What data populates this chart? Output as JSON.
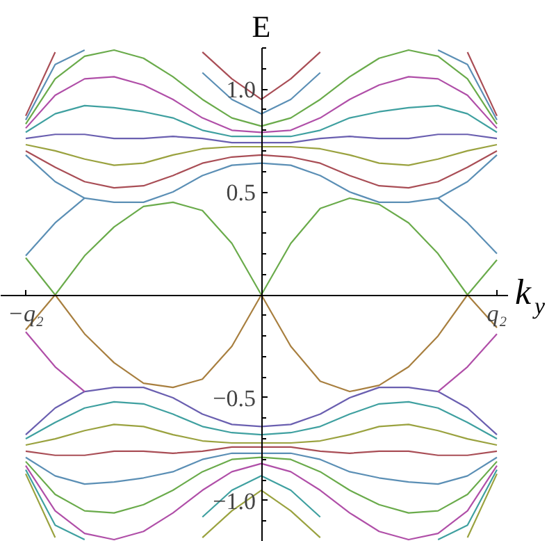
{
  "chart_data": {
    "type": "line",
    "xlabel": "k$_{y}$",
    "ylabel": "E",
    "categories": [
      "−q₂",
      null,
      null,
      null,
      null,
      null,
      null,
      null,
      null,
      null,
      null,
      null,
      null,
      null,
      null,
      null,
      "q₂"
    ],
    "ylim": [
      -1.2,
      1.2
    ],
    "yticks": [
      {
        "value": -1,
        "label": "−1.0"
      },
      {
        "value": -0.5,
        "label": "−0.5"
      },
      0.5,
      {
        "value": 1,
        "label": "1.0"
      }
    ],
    "grid": false,
    "marker": "none",
    "line_style": "solid",
    "series": [
      {
        "color": "#5b8fb5",
        "values": [
          0.68,
          0.55,
          0.47,
          0.45,
          0.45,
          0.5,
          0.58,
          0.63,
          0.64,
          0.63,
          0.58,
          0.5,
          0.45,
          0.45,
          0.47,
          0.55,
          0.68
        ]
      },
      {
        "color": "#a94e56",
        "values": [
          0.7,
          0.62,
          0.55,
          0.52,
          0.53,
          0.58,
          0.64,
          0.67,
          0.68,
          0.67,
          0.64,
          0.58,
          0.53,
          0.52,
          0.55,
          0.62,
          0.7
        ]
      },
      {
        "color": "#9aa23f",
        "values": [
          0.73,
          0.7,
          0.66,
          0.63,
          0.64,
          0.68,
          0.71,
          0.72,
          0.72,
          0.72,
          0.71,
          0.68,
          0.64,
          0.63,
          0.66,
          0.7,
          0.73
        ]
      },
      {
        "color": "#6a5fb0",
        "values": [
          0.76,
          0.78,
          0.78,
          0.76,
          0.76,
          0.77,
          0.76,
          0.74,
          0.74,
          0.74,
          0.76,
          0.77,
          0.76,
          0.76,
          0.78,
          0.78,
          0.76
        ]
      },
      {
        "color": "#3fa0a0",
        "values": [
          0.79,
          0.88,
          0.92,
          0.91,
          0.89,
          0.86,
          0.8,
          0.77,
          0.77,
          0.77,
          0.8,
          0.86,
          0.89,
          0.91,
          0.92,
          0.88,
          0.79
        ]
      },
      {
        "color": "#b04fa8",
        "values": [
          0.81,
          0.97,
          1.05,
          1.06,
          1.02,
          0.95,
          0.86,
          0.8,
          0.79,
          0.8,
          0.86,
          0.95,
          1.02,
          1.06,
          1.05,
          0.97,
          0.81
        ]
      },
      {
        "color": "#6aab4b",
        "values": [
          0.83,
          1.05,
          1.16,
          1.19,
          1.15,
          1.06,
          0.95,
          0.86,
          0.82,
          0.86,
          0.95,
          1.06,
          1.15,
          1.19,
          1.16,
          1.05,
          0.83
        ]
      },
      {
        "color": "#5b8fb5",
        "values": [
          0.85,
          1.12,
          1.19,
          null,
          null,
          null,
          1.08,
          0.95,
          0.88,
          0.95,
          1.08,
          null,
          null,
          null,
          1.19,
          1.12,
          0.85
        ]
      },
      {
        "color": "#a94e56",
        "values": [
          0.87,
          1.18,
          null,
          null,
          null,
          null,
          1.18,
          1.05,
          0.95,
          1.05,
          1.18,
          null,
          null,
          null,
          null,
          1.18,
          0.87
        ]
      },
      {
        "color": "#6a5fb0",
        "values": [
          -0.68,
          -0.55,
          -0.47,
          -0.45,
          -0.45,
          -0.5,
          -0.58,
          -0.63,
          -0.64,
          -0.63,
          -0.58,
          -0.5,
          -0.45,
          -0.45,
          -0.47,
          -0.55,
          -0.68
        ]
      },
      {
        "color": "#3fa0a0",
        "values": [
          -0.7,
          -0.62,
          -0.55,
          -0.52,
          -0.53,
          -0.58,
          -0.64,
          -0.67,
          -0.68,
          -0.67,
          -0.64,
          -0.58,
          -0.53,
          -0.52,
          -0.55,
          -0.62,
          -0.7
        ]
      },
      {
        "color": "#9aa23f",
        "values": [
          -0.73,
          -0.7,
          -0.66,
          -0.63,
          -0.64,
          -0.68,
          -0.71,
          -0.72,
          -0.72,
          -0.72,
          -0.71,
          -0.68,
          -0.64,
          -0.63,
          -0.66,
          -0.7,
          -0.73
        ]
      },
      {
        "color": "#a94e56",
        "values": [
          -0.76,
          -0.78,
          -0.78,
          -0.76,
          -0.76,
          -0.77,
          -0.76,
          -0.74,
          -0.74,
          -0.74,
          -0.76,
          -0.77,
          -0.76,
          -0.76,
          -0.78,
          -0.78,
          -0.76
        ]
      },
      {
        "color": "#5b8fb5",
        "values": [
          -0.79,
          -0.88,
          -0.92,
          -0.91,
          -0.89,
          -0.86,
          -0.8,
          -0.77,
          -0.77,
          -0.77,
          -0.8,
          -0.86,
          -0.89,
          -0.91,
          -0.92,
          -0.88,
          -0.79
        ]
      },
      {
        "color": "#6aab4b",
        "values": [
          -0.81,
          -0.97,
          -1.05,
          -1.06,
          -1.02,
          -0.95,
          -0.86,
          -0.8,
          -0.79,
          -0.8,
          -0.86,
          -0.95,
          -1.02,
          -1.06,
          -1.05,
          -0.97,
          -0.81
        ]
      },
      {
        "color": "#b04fa8",
        "values": [
          -0.83,
          -1.05,
          -1.16,
          -1.19,
          -1.15,
          -1.06,
          -0.95,
          -0.86,
          -0.82,
          -0.86,
          -0.95,
          -1.06,
          -1.15,
          -1.19,
          -1.16,
          -1.05,
          -0.83
        ]
      },
      {
        "color": "#3fa0a0",
        "values": [
          -0.85,
          -1.12,
          -1.19,
          null,
          null,
          null,
          -1.08,
          -0.95,
          -0.88,
          -0.95,
          -1.08,
          null,
          null,
          null,
          -1.19,
          -1.12,
          -0.85
        ]
      },
      {
        "color": "#9aa23f",
        "values": [
          -0.87,
          -1.18,
          null,
          null,
          null,
          null,
          -1.18,
          -1.05,
          -0.95,
          -1.05,
          -1.18,
          null,
          null,
          null,
          null,
          -1.18,
          -0.87
        ]
      },
      {
        "color": "#5b8fb5",
        "values": [
          0.19,
          0.35,
          0.47,
          null,
          null,
          null,
          null,
          null,
          null,
          null,
          null,
          null,
          null,
          null,
          0.47,
          0.35,
          0.2
        ]
      },
      {
        "color": "#b04fa8",
        "values": [
          -0.18,
          -0.35,
          -0.47,
          null,
          null,
          null,
          null,
          null,
          null,
          null,
          null,
          null,
          null,
          null,
          -0.47,
          -0.35,
          -0.19
        ]
      },
      {
        "color": "#6aab4b",
        "values": [
          0.18,
          0,
          0.19,
          0.33,
          0.43,
          0.45,
          0.41,
          0.25,
          0,
          0.25,
          0.42,
          0.47,
          0.44,
          0.35,
          0.2,
          0,
          0.17
        ]
      },
      {
        "color": "#a87f3f",
        "values": [
          -0.17,
          0,
          -0.19,
          -0.33,
          -0.43,
          -0.45,
          -0.41,
          -0.25,
          0,
          -0.25,
          -0.42,
          -0.47,
          -0.44,
          -0.35,
          -0.2,
          0,
          -0.16
        ]
      }
    ]
  }
}
